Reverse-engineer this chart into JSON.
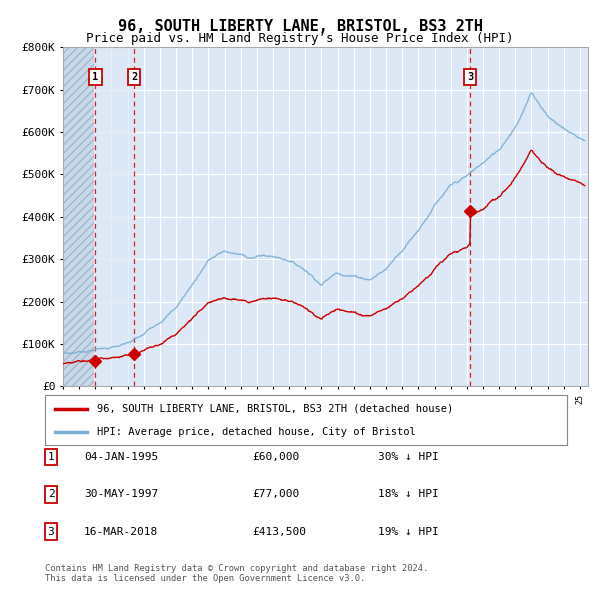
{
  "title": "96, SOUTH LIBERTY LANE, BRISTOL, BS3 2TH",
  "subtitle": "Price paid vs. HM Land Registry’s House Price Index (HPI)",
  "ylim": [
    0,
    800000
  ],
  "yticks": [
    0,
    100000,
    200000,
    300000,
    400000,
    500000,
    600000,
    700000,
    800000
  ],
  "ytick_labels": [
    "£0",
    "£100K",
    "£200K",
    "£300K",
    "£400K",
    "£500K",
    "£600K",
    "£700K",
    "£800K"
  ],
  "xmin": 1993,
  "xmax": 2025.5,
  "sale_dates": [
    1995.01,
    1997.42,
    2018.21
  ],
  "sale_prices": [
    60000,
    77000,
    413500
  ],
  "sale_labels": [
    "1",
    "2",
    "3"
  ],
  "hpi_color": "#7bafd4",
  "sale_color": "#cc0000",
  "hatch_end": 1994.9,
  "band1_end": 1997.42,
  "legend_entries": [
    "96, SOUTH LIBERTY LANE, BRISTOL, BS3 2TH (detached house)",
    "HPI: Average price, detached house, City of Bristol"
  ],
  "table_rows": [
    [
      "1",
      "04-JAN-1995",
      "£60,000",
      "30% ↓ HPI"
    ],
    [
      "2",
      "30-MAY-1997",
      "£77,000",
      "18% ↓ HPI"
    ],
    [
      "3",
      "16-MAR-2018",
      "£413,500",
      "19% ↓ HPI"
    ]
  ],
  "footnote": "Contains HM Land Registry data © Crown copyright and database right 2024.\nThis data is licensed under the Open Government Licence v3.0.",
  "bg_color": "#ffffff",
  "plot_bg_color": "#dce8f5",
  "hatch_color": "#b8cfe0",
  "band_color": "#dce8f5",
  "grid_color": "#ffffff",
  "title_fontsize": 11,
  "subtitle_fontsize": 9,
  "tick_fontsize": 8
}
